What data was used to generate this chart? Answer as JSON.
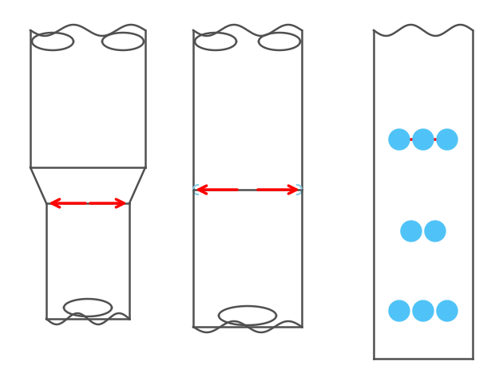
{
  "background_color": "#ffffff",
  "line_color": "#505050",
  "line_width": 1.8,
  "arrow_color": "#ff0000",
  "dot_color": "#4fc3f7",
  "fig_width": 6.3,
  "fig_height": 4.73,
  "dpi": 100
}
